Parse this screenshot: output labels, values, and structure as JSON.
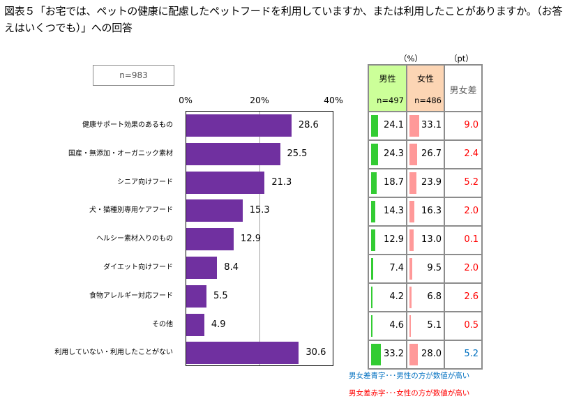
{
  "title": "図表５「お宅では、ペットの健康に配慮したペットフードを利用していますか、または利用したことがありますか。（お答えはいくつでも）」への回答",
  "sample_label": "n=983",
  "table": {
    "unit_pct": "（%）",
    "unit_pt": "（pt）",
    "male_label": "男性",
    "male_n": "n=497",
    "female_label": "女性",
    "female_n": "n=486",
    "diff_label": "男女差",
    "male_color": "#33cc33",
    "female_color": "#ff9999",
    "male_header_bg": "#ccff99",
    "female_header_bg": "#fcd5b4",
    "rows": [
      {
        "male": "24.1",
        "female": "33.1",
        "diff": "9.0",
        "diff_color": "#ff0000"
      },
      {
        "male": "24.3",
        "female": "26.7",
        "diff": "2.4",
        "diff_color": "#ff0000"
      },
      {
        "male": "18.7",
        "female": "23.9",
        "diff": "5.2",
        "diff_color": "#ff0000"
      },
      {
        "male": "14.3",
        "female": "16.3",
        "diff": "2.0",
        "diff_color": "#ff0000"
      },
      {
        "male": "12.9",
        "female": "13.0",
        "diff": "0.1",
        "diff_color": "#ff0000"
      },
      {
        "male": "7.4",
        "female": "9.5",
        "diff": "2.0",
        "diff_color": "#ff0000"
      },
      {
        "male": "4.2",
        "female": "6.8",
        "diff": "2.6",
        "diff_color": "#ff0000"
      },
      {
        "male": "4.6",
        "female": "5.1",
        "diff": "0.5",
        "diff_color": "#ff0000"
      },
      {
        "male": "33.2",
        "female": "28.0",
        "diff": "5.2",
        "diff_color": "#0070c0"
      }
    ]
  },
  "notes": {
    "blue": "男女差青字･･･男性の方が数値が高い",
    "red": "男女差赤字･･･女性の方が数値が高い",
    "blue_color": "#0070c0",
    "red_color": "#ff0000"
  },
  "chart_data": {
    "type": "bar",
    "orientation": "horizontal",
    "title": "図表５「お宅では、ペットの健康に配慮したペットフードを利用していますか、または利用したことがありますか。（お答えはいくつでも）」への回答",
    "xlabel": "",
    "ylabel": "",
    "xlim": [
      0,
      40
    ],
    "tick_labels": [
      "0%",
      "20%",
      "40%"
    ],
    "grid": true,
    "bar_color": "#7030a0",
    "categories": [
      "健康サポート効果のあるもの",
      "国産・無添加・オーガニック素材",
      "シニア向けフード",
      "犬・猫種別専用ケアフード",
      "ヘルシー素材入りのもの",
      "ダイエット向けフード",
      "食物アレルギー対応フード",
      "その他",
      "利用していない・利用したことがない"
    ],
    "values": [
      28.6,
      25.5,
      21.3,
      15.3,
      12.9,
      8.4,
      5.5,
      4.9,
      30.6
    ],
    "value_labels": [
      "28.6",
      "25.5",
      "21.3",
      "15.3",
      "12.9",
      "8.4",
      "5.5",
      "4.9",
      "30.6"
    ],
    "series": [
      {
        "name": "全体 n=983",
        "values": [
          28.6,
          25.5,
          21.3,
          15.3,
          12.9,
          8.4,
          5.5,
          4.9,
          30.6
        ]
      },
      {
        "name": "男性 n=497",
        "values": [
          24.1,
          24.3,
          18.7,
          14.3,
          12.9,
          7.4,
          4.2,
          4.6,
          33.2
        ]
      },
      {
        "name": "女性 n=486",
        "values": [
          33.1,
          26.7,
          23.9,
          16.3,
          13.0,
          9.5,
          6.8,
          5.1,
          28.0
        ]
      },
      {
        "name": "男女差 (pt)",
        "values": [
          9.0,
          2.4,
          5.2,
          2.0,
          0.1,
          2.0,
          2.6,
          0.5,
          5.2
        ]
      }
    ]
  }
}
